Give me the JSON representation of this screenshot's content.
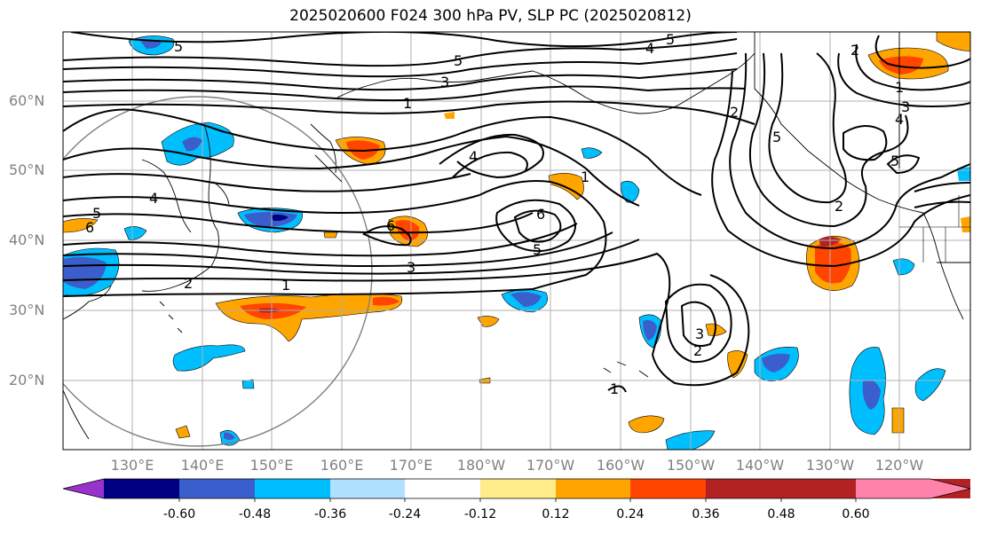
{
  "title": "2025020600 F024 300 hPa PV, SLP PC (2025020812)",
  "latitude_labels": [
    "60°N",
    "50°N",
    "40°N",
    "30°N",
    "20°N"
  ],
  "longitude_labels": [
    "130°E",
    "140°E",
    "150°E",
    "160°E",
    "170°E",
    "180°W",
    "170°W",
    "160°W",
    "150°W",
    "140°W",
    "130°W",
    "120°W"
  ],
  "colorbar": {
    "colors": [
      "#9932cc",
      "#000080",
      "#3a5fcd",
      "#00bfff",
      "#b0e2ff",
      "#ffffff",
      "#ffec8b",
      "#ffa500",
      "#ff4500",
      "#b22222",
      "#ff82ab"
    ],
    "tick_labels": [
      "-0.60",
      "-0.48",
      "-0.36",
      "-0.24",
      "-0.12",
      "0.12",
      "0.24",
      "0.36",
      "0.48",
      "0.60"
    ]
  },
  "contour_labels": [
    "5",
    "5",
    "4",
    "3",
    "1",
    "5",
    "2",
    "1",
    "3",
    "4",
    "2",
    "5",
    "4",
    "5",
    "6",
    "4",
    "5",
    "6",
    "6",
    "5",
    "1",
    "2",
    "3",
    "1",
    "3",
    "2",
    "1",
    "2"
  ]
}
